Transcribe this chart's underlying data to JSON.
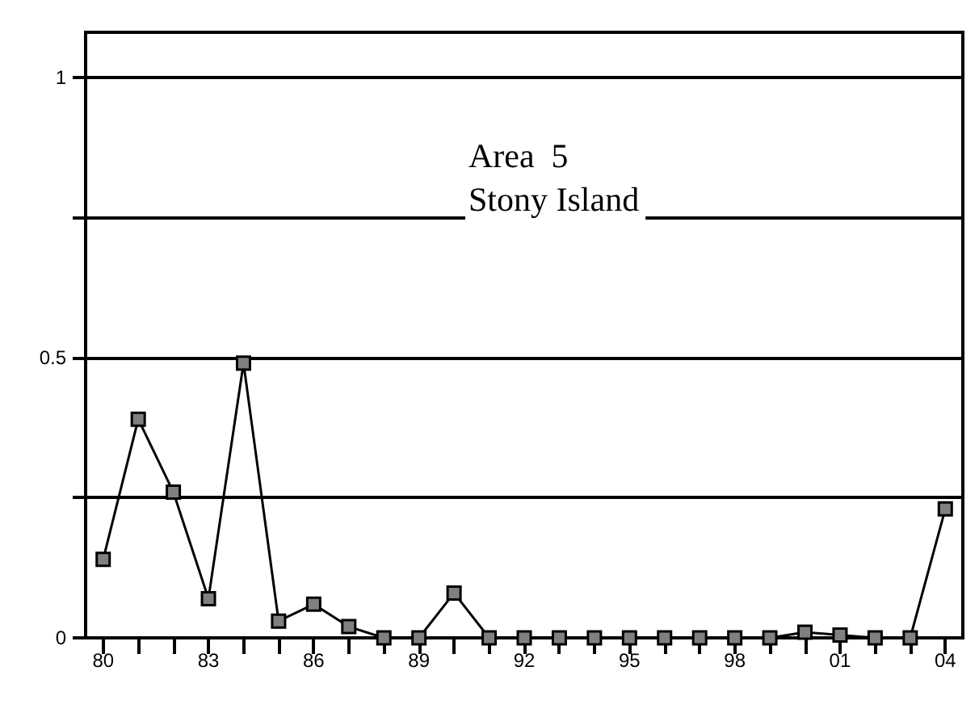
{
  "chart_data": {
    "type": "line",
    "title": "Area  5",
    "subtitle": "Stony Island",
    "x": [
      1980,
      1981,
      1982,
      1983,
      1984,
      1985,
      1986,
      1987,
      1988,
      1989,
      1990,
      1991,
      1992,
      1993,
      1994,
      1995,
      1996,
      1997,
      1998,
      1999,
      2000,
      2001,
      2002,
      2003,
      2004
    ],
    "series": [
      {
        "color": "#000000",
        "values": [
          0.14,
          0.39,
          0.26,
          0.07,
          0.49,
          0.03,
          0.06,
          0.02,
          0,
          0,
          0.08,
          0,
          0,
          0,
          0,
          0,
          0,
          0,
          0,
          0,
          0.01,
          0.005,
          0,
          0,
          0.23
        ]
      }
    ],
    "xlim": [
      1979.5,
      2004.5
    ],
    "xticks": [
      {
        "value": 1980,
        "label": "80"
      },
      {
        "value": 1981,
        "label": null
      },
      {
        "value": 1982,
        "label": null
      },
      {
        "value": 1983,
        "label": "83"
      },
      {
        "value": 1984,
        "label": null
      },
      {
        "value": 1985,
        "label": null
      },
      {
        "value": 1986,
        "label": "86"
      },
      {
        "value": 1987,
        "label": null
      },
      {
        "value": 1988,
        "label": null
      },
      {
        "value": 1989,
        "label": "89"
      },
      {
        "value": 1990,
        "label": null
      },
      {
        "value": 1991,
        "label": null
      },
      {
        "value": 1992,
        "label": "92"
      },
      {
        "value": 1993,
        "label": null
      },
      {
        "value": 1994,
        "label": null
      },
      {
        "value": 1995,
        "label": "95"
      },
      {
        "value": 1996,
        "label": null
      },
      {
        "value": 1997,
        "label": null
      },
      {
        "value": 1998,
        "label": "98"
      },
      {
        "value": 1999,
        "label": null
      },
      {
        "value": 2000,
        "label": null
      },
      {
        "value": 2001,
        "label": "01"
      },
      {
        "value": 2002,
        "label": null
      },
      {
        "value": 2003,
        "label": null
      },
      {
        "value": 2004,
        "label": "04"
      }
    ],
    "ylim": [
      0,
      1.08
    ],
    "yticks": [
      0,
      {
        "value": 0.25,
        "label": null
      },
      0.5,
      {
        "value": 0.75,
        "label": null
      },
      1
    ],
    "grid": "y",
    "marker": "square",
    "line_style": "solid"
  }
}
